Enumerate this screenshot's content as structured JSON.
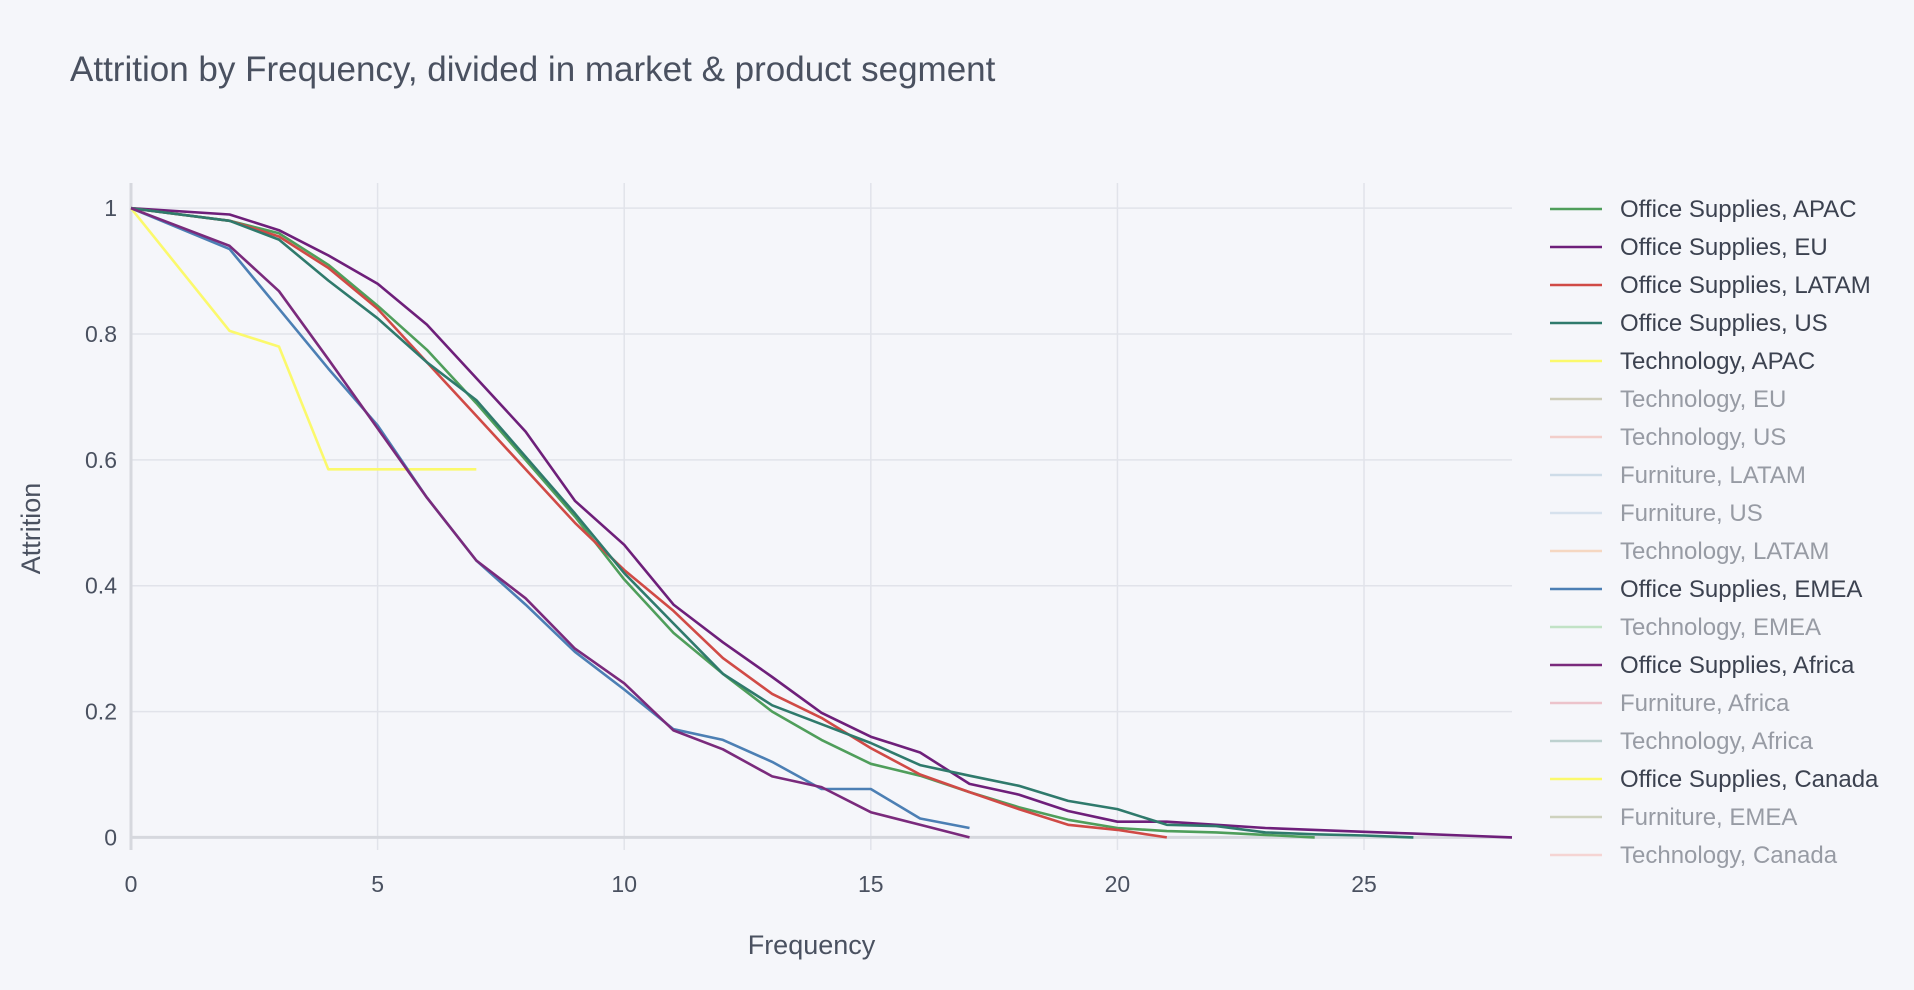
{
  "chart_data": {
    "type": "line",
    "title": "Attrition by Frequency, divided in market & product segment",
    "xlabel": "Frequency",
    "ylabel": "Attrition",
    "xlim": [
      0,
      28
    ],
    "ylim": [
      -0.02,
      1.04
    ],
    "xticks": [
      0,
      5,
      10,
      15,
      20,
      25
    ],
    "yticks": [
      0,
      0.2,
      0.4,
      0.6,
      0.8,
      1
    ],
    "ytick_labels": [
      "0",
      "0.2",
      "0.4",
      "0.6",
      "0.8",
      "1"
    ],
    "grid": true,
    "legend_position": "right",
    "series": [
      {
        "name": "Office Supplies, APAC",
        "color": "#4f9e5b",
        "visible": true,
        "x": [
          0,
          2,
          3,
          4,
          5,
          6,
          7,
          8,
          9,
          10,
          11,
          12,
          13,
          14,
          15,
          16,
          17,
          18,
          19,
          20,
          21,
          22,
          23,
          24
        ],
        "y": [
          1,
          0.98,
          0.96,
          0.91,
          0.845,
          0.775,
          0.69,
          0.6,
          0.51,
          0.41,
          0.325,
          0.26,
          0.2,
          0.155,
          0.117,
          0.098,
          0.072,
          0.048,
          0.028,
          0.015,
          0.01,
          0.008,
          0.004,
          0
        ]
      },
      {
        "name": "Office Supplies, EU",
        "color": "#6e1f7a",
        "visible": true,
        "x": [
          0,
          2,
          3,
          4,
          5,
          6,
          7,
          8,
          9,
          10,
          11,
          12,
          13,
          14,
          15,
          16,
          17,
          18,
          19,
          20,
          21,
          22,
          23,
          24,
          25,
          26,
          27,
          28
        ],
        "y": [
          1,
          0.99,
          0.965,
          0.925,
          0.88,
          0.815,
          0.73,
          0.645,
          0.535,
          0.465,
          0.37,
          0.31,
          0.255,
          0.198,
          0.16,
          0.135,
          0.085,
          0.068,
          0.042,
          0.025,
          0.025,
          0.02,
          0.015,
          0.012,
          0.009,
          0.006,
          0.003,
          0
        ]
      },
      {
        "name": "Office Supplies, LATAM",
        "color": "#d04a46",
        "visible": true,
        "x": [
          0,
          2,
          3,
          4,
          5,
          6,
          7,
          8,
          9,
          10,
          11,
          12,
          13,
          14,
          15,
          16,
          17,
          18,
          19,
          20,
          21
        ],
        "y": [
          1,
          0.98,
          0.955,
          0.905,
          0.84,
          0.755,
          0.67,
          0.585,
          0.5,
          0.425,
          0.36,
          0.285,
          0.228,
          0.19,
          0.142,
          0.1,
          0.072,
          0.045,
          0.02,
          0.012,
          0
        ]
      },
      {
        "name": "Office Supplies, US",
        "color": "#2f7a6c",
        "visible": true,
        "x": [
          0,
          2,
          3,
          4,
          5,
          6,
          7,
          8,
          9,
          10,
          11,
          12,
          13,
          14,
          15,
          16,
          17,
          18,
          19,
          20,
          21,
          22,
          23,
          24,
          25,
          26
        ],
        "y": [
          1,
          0.98,
          0.95,
          0.885,
          0.825,
          0.755,
          0.695,
          0.605,
          0.515,
          0.42,
          0.34,
          0.26,
          0.21,
          0.18,
          0.15,
          0.115,
          0.098,
          0.082,
          0.058,
          0.045,
          0.02,
          0.018,
          0.008,
          0.005,
          0.003,
          0
        ]
      },
      {
        "name": "Technology, APAC",
        "color": "#fbf96c",
        "visible": true,
        "x": [
          0,
          2,
          3,
          4,
          5,
          6,
          7
        ],
        "y": [
          1,
          0.805,
          0.78,
          0.585,
          0.585,
          0.585,
          0.585
        ]
      },
      {
        "name": "Technology, EU",
        "color": "#a9a67a",
        "visible": false,
        "x": [],
        "y": []
      },
      {
        "name": "Technology, US",
        "color": "#f1a89c",
        "visible": false,
        "x": [],
        "y": []
      },
      {
        "name": "Furniture, LATAM",
        "color": "#a9c4d8",
        "visible": false,
        "x": [],
        "y": []
      },
      {
        "name": "Furniture, US",
        "color": "#b9cde2",
        "visible": false,
        "x": [],
        "y": []
      },
      {
        "name": "Technology, LATAM",
        "color": "#f5b98a",
        "visible": false,
        "x": [],
        "y": []
      },
      {
        "name": "Office Supplies, EMEA",
        "color": "#4c7fb4",
        "visible": true,
        "x": [
          0,
          2,
          3,
          4,
          5,
          6,
          7,
          8,
          9,
          10,
          11,
          12,
          13,
          14,
          15,
          16,
          17
        ],
        "y": [
          1,
          0.935,
          0.84,
          0.745,
          0.655,
          0.54,
          0.44,
          0.37,
          0.295,
          0.235,
          0.172,
          0.155,
          0.12,
          0.077,
          0.077,
          0.03,
          0.015
        ]
      },
      {
        "name": "Technology, EMEA",
        "color": "#8fd092",
        "visible": false,
        "x": [],
        "y": []
      },
      {
        "name": "Office Supplies, Africa",
        "color": "#7a2a7c",
        "visible": true,
        "x": [
          0,
          2,
          3,
          4,
          5,
          6,
          7,
          8,
          9,
          10,
          11,
          12,
          13,
          14,
          15,
          16,
          17
        ],
        "y": [
          1,
          0.94,
          0.868,
          0.76,
          0.65,
          0.54,
          0.44,
          0.38,
          0.3,
          0.245,
          0.17,
          0.14,
          0.097,
          0.08,
          0.04,
          0.02,
          0
        ]
      },
      {
        "name": "Furniture, Africa",
        "color": "#e4919e",
        "visible": false,
        "x": [],
        "y": []
      },
      {
        "name": "Technology, Africa",
        "color": "#86aea5",
        "visible": false,
        "x": [],
        "y": []
      },
      {
        "name": "Office Supplies, Canada",
        "color": "#fbf96c",
        "visible": true,
        "x": [],
        "y": []
      },
      {
        "name": "Furniture, EMEA",
        "color": "#a9b083",
        "visible": false,
        "x": [],
        "y": []
      },
      {
        "name": "Technology, Canada",
        "color": "#f6b4ae",
        "visible": false,
        "x": [],
        "y": []
      }
    ]
  }
}
